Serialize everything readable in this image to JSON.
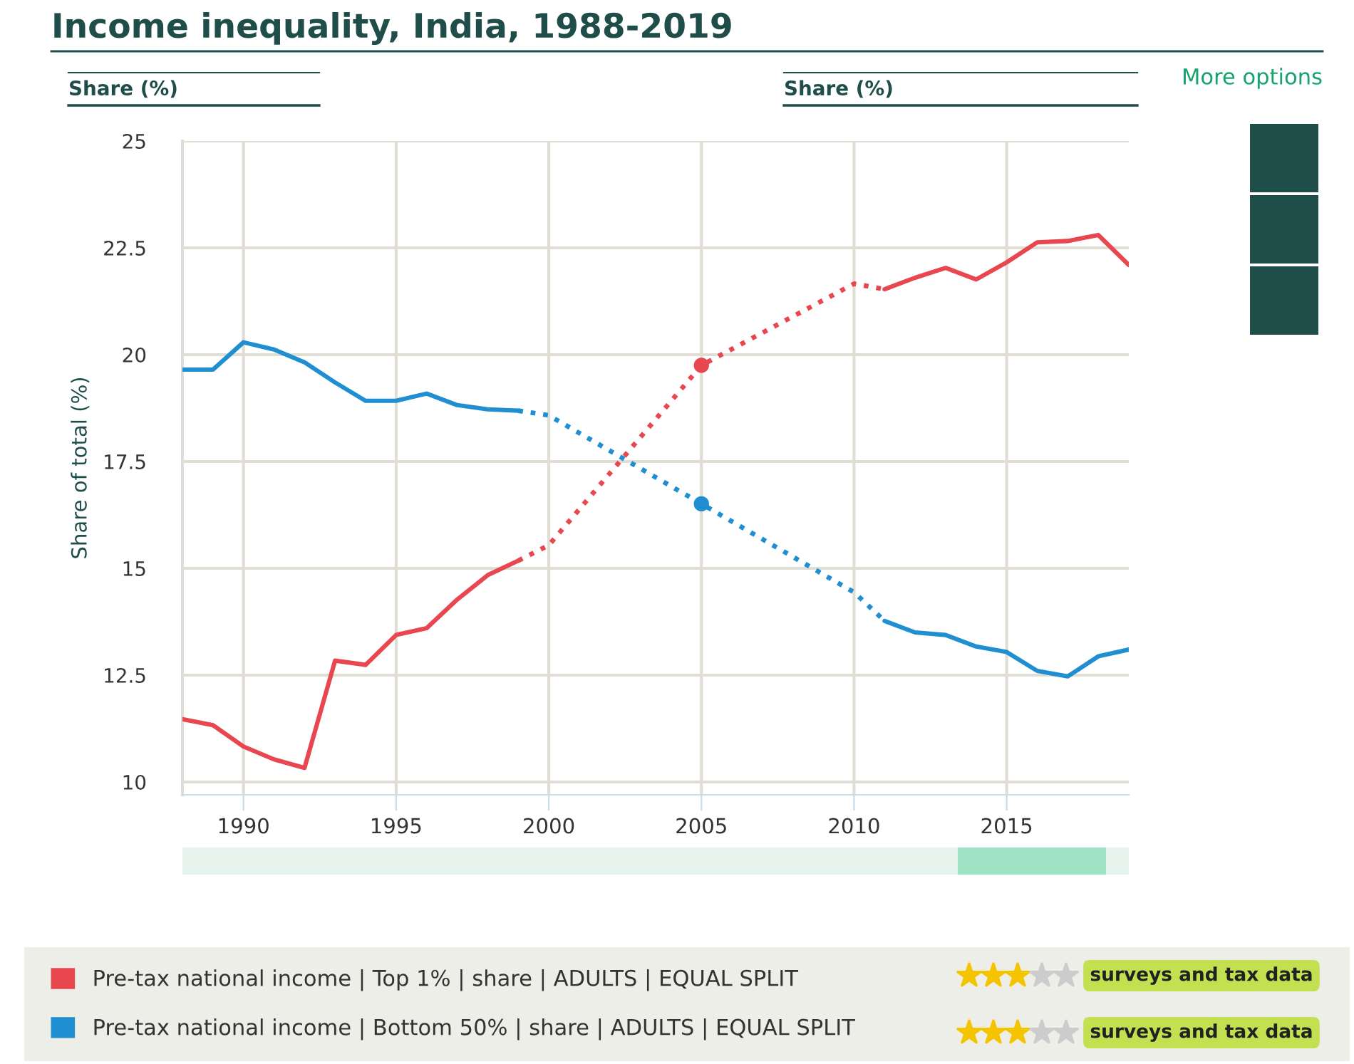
{
  "chart_data": {
    "type": "line",
    "title": "Income inequality, India, 1988-2019",
    "ylabel": "Share of total (%)",
    "xlim": [
      1988,
      2019
    ],
    "xticks": [
      1990,
      1995,
      2000,
      2005,
      2010,
      2015
    ],
    "ylim": [
      9.7,
      25
    ],
    "yticks": [
      10,
      12.5,
      15,
      17.5,
      20,
      22.5,
      25
    ],
    "grid": true,
    "legend": "bottom",
    "annotations": [
      "Share (%)",
      "Share (%)",
      "More options",
      "surveys and tax data",
      "surveys and tax data"
    ],
    "series": [
      {
        "name": "Pre-tax national income | Top 1% | share | ADULTS | EQUAL SPLIT",
        "color": "#e8474f",
        "line_style": "solid",
        "x": [
          1988,
          1989,
          1990,
          1991,
          1992,
          1993,
          1994,
          1995,
          1996,
          1997,
          1998,
          1999
        ],
        "values": [
          11.47,
          11.33,
          10.83,
          10.53,
          10.33,
          12.84,
          12.74,
          13.44,
          13.6,
          14.27,
          14.84,
          15.18
        ]
      },
      {
        "color": "#e8474f",
        "line_style": "dotted",
        "x": [
          1999,
          2000,
          2005,
          2010,
          2011
        ],
        "values": [
          15.18,
          15.54,
          19.75,
          21.66,
          21.53
        ]
      },
      {
        "color": "#e8474f",
        "line_style": "solid",
        "x": [
          2011,
          2012,
          2013,
          2014,
          2015,
          2016,
          2017,
          2018,
          2019
        ],
        "values": [
          21.53,
          21.8,
          22.03,
          21.76,
          22.16,
          22.63,
          22.66,
          22.8,
          22.1
        ]
      },
      {
        "type": "scatter",
        "color": "#e8474f",
        "marker": "circle",
        "x": [
          2005
        ],
        "values": [
          19.75
        ]
      },
      {
        "name": "Pre-tax national income | Bottom 50% | share | ADULTS | EQUAL SPLIT",
        "color": "#1f8fd1",
        "line_style": "solid",
        "x": [
          1988,
          1989,
          1990,
          1991,
          1992,
          1993,
          1994,
          1995,
          1996,
          1997,
          1998,
          1999
        ],
        "values": [
          19.65,
          19.65,
          20.29,
          20.12,
          19.82,
          19.35,
          18.92,
          18.92,
          19.09,
          18.82,
          18.72,
          18.69
        ]
      },
      {
        "color": "#1f8fd1",
        "line_style": "dotted",
        "x": [
          1999,
          2000,
          2005,
          2010,
          2011
        ],
        "values": [
          18.69,
          18.58,
          16.51,
          14.44,
          13.77
        ]
      },
      {
        "color": "#1f8fd1",
        "line_style": "solid",
        "x": [
          2011,
          2012,
          2013,
          2014,
          2015,
          2016,
          2017,
          2018,
          2019
        ],
        "values": [
          13.77,
          13.5,
          13.44,
          13.17,
          13.04,
          12.6,
          12.47,
          12.94,
          13.1
        ]
      },
      {
        "type": "scatter",
        "color": "#1f8fd1",
        "marker": "circle",
        "x": [
          2005
        ],
        "values": [
          16.51
        ]
      }
    ]
  }
}
